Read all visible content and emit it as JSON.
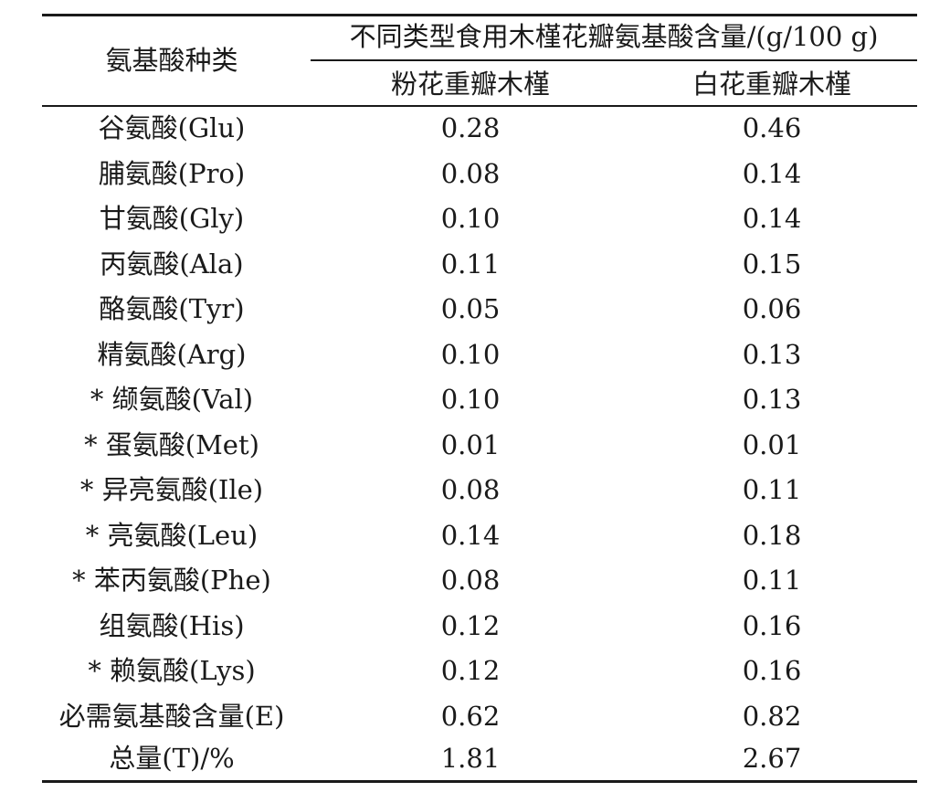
{
  "header": {
    "row_label": "氨基酸种类",
    "span_label": "不同类型食用木槿花瓣氨基酸含量/(g/100 g)",
    "col1": "粉花重瓣木槿",
    "col2": "白花重瓣木槿"
  },
  "rows": [
    {
      "name": "谷氨酸(Glu)",
      "pink": "0.28",
      "white": "0.46"
    },
    {
      "name": "脯氨酸(Pro)",
      "pink": "0.08",
      "white": "0.14"
    },
    {
      "name": "甘氨酸(Gly)",
      "pink": "0.10",
      "white": "0.14"
    },
    {
      "name": "丙氨酸(Ala)",
      "pink": "0.11",
      "white": "0.15"
    },
    {
      "name": "酪氨酸(Tyr)",
      "pink": "0.05",
      "white": "0.06"
    },
    {
      "name": "精氨酸(Arg)",
      "pink": "0.10",
      "white": "0.13"
    },
    {
      "name": "* 缬氨酸(Val)",
      "pink": "0.10",
      "white": "0.13"
    },
    {
      "name": "* 蛋氨酸(Met)",
      "pink": "0.01",
      "white": "0.01"
    },
    {
      "name": "* 异亮氨酸(Ile)",
      "pink": "0.08",
      "white": "0.11"
    },
    {
      "name": "* 亮氨酸(Leu)",
      "pink": "0.14",
      "white": "0.18"
    },
    {
      "name": "* 苯丙氨酸(Phe)",
      "pink": "0.08",
      "white": "0.11"
    },
    {
      "name": "组氨酸(His)",
      "pink": "0.12",
      "white": "0.16"
    },
    {
      "name": "* 赖氨酸(Lys)",
      "pink": "0.12",
      "white": "0.16"
    },
    {
      "name": "必需氨基酸含量(E)",
      "pink": "0.62",
      "white": "0.82"
    },
    {
      "name": "总量(T)/%",
      "pink": "1.81",
      "white": "2.67"
    }
  ]
}
